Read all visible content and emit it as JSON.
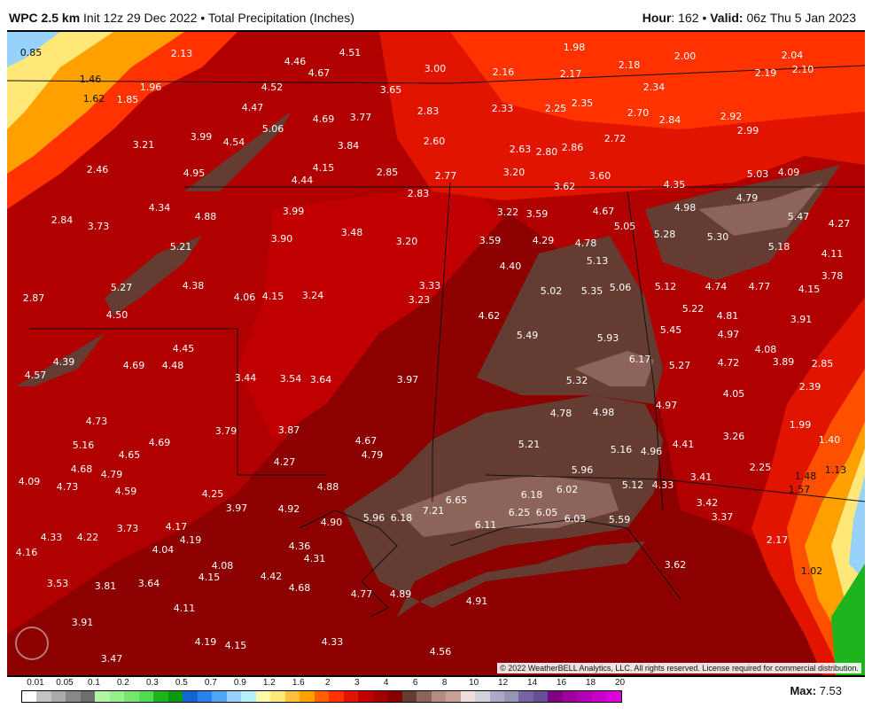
{
  "header": {
    "model": "WPC 2.5 km",
    "init": "Init 12z 29 Dec 2022",
    "separator": "•",
    "product": "Total Precipitation (Inches)",
    "hour_label": "Hour",
    "hour": ": 162",
    "valid_label": "Valid:",
    "valid": " 06z Thu 5 Jan 2023"
  },
  "map": {
    "copyright": "© 2022 WeatherBELL Analytics, LLC. All rights reserved. License required for commercial distribution.",
    "logo_text": "WEATHERBELL",
    "labels": [
      "0.85",
      "2.13",
      "4.46",
      "4.67",
      "4.51",
      "3.00",
      "2.16",
      "1.98",
      "2.17",
      "2.18",
      "2.00",
      "2.04",
      "2.19",
      "2.10",
      "1.46",
      "1.62",
      "1.85",
      "1.96",
      "4.52",
      "3.65",
      "2.34",
      "4.47",
      "4.69",
      "3.77",
      "2.83",
      "2.33",
      "2.25",
      "2.35",
      "2.70",
      "2.84",
      "2.92",
      "5.06",
      "2.99",
      "3.99",
      "4.54",
      "3.21",
      "3.84",
      "2.60",
      "2.63",
      "2.80",
      "2.86",
      "2.72",
      "2.46",
      "4.95",
      "4.15",
      "2.85",
      "2.77",
      "3.20",
      "3.60",
      "3.62",
      "4.44",
      "4.35",
      "5.03",
      "4.09",
      "2.83",
      "4.34",
      "4.88",
      "3.99",
      "3.22",
      "3.59",
      "4.67",
      "4.98",
      "4.79",
      "5.47",
      "4.27",
      "2.84",
      "3.73",
      "3.90",
      "3.48",
      "3.20",
      "3.59",
      "4.29",
      "4.78",
      "5.05",
      "5.28",
      "5.30",
      "5.18",
      "4.11",
      "5.21",
      "4.40",
      "5.13",
      "3.78",
      "5.27",
      "4.38",
      "4.06",
      "4.15",
      "3.24",
      "3.33",
      "3.23",
      "5.02",
      "5.35",
      "5.06",
      "5.12",
      "4.74",
      "4.77",
      "4.15",
      "2.87",
      "4.50",
      "4.62",
      "5.22",
      "4.81",
      "3.91",
      "5.49",
      "5.93",
      "5.45",
      "4.97",
      "4.45",
      "4.69",
      "4.48",
      "4.57",
      "4.39",
      "6.17",
      "4.72",
      "4.08",
      "3.89",
      "2.85",
      "3.44",
      "3.54",
      "3.64",
      "3.97",
      "5.32",
      "5.27",
      "4.05",
      "2.39",
      "4.97",
      "4.78",
      "4.98",
      "1.99",
      "4.73",
      "3.79",
      "3.87",
      "3.26",
      "1.40",
      "5.16",
      "4.69",
      "4.65",
      "4.67",
      "4.79",
      "5.21",
      "5.16",
      "4.96",
      "4.41",
      "4.27",
      "5.96",
      "2.25",
      "1.13",
      "4.68",
      "4.79",
      "4.09",
      "4.73",
      "4.59",
      "4.88",
      "5.12",
      "4.33",
      "3.41",
      "1.48",
      "1.57",
      "4.25",
      "6.18",
      "6.02",
      "3.97",
      "4.92",
      "6.65",
      "3.42",
      "4.90",
      "5.96",
      "6.18",
      "7.21",
      "6.25",
      "6.05",
      "6.03",
      "5.59",
      "3.37",
      "3.73",
      "4.17",
      "6.11",
      "4.33",
      "4.22",
      "4.19",
      "4.04",
      "4.36",
      "2.17",
      "4.16",
      "4.31",
      "4.08",
      "3.62",
      "4.15",
      "4.42",
      "1.02",
      "3.53",
      "3.81",
      "3.64",
      "4.68",
      "4.77",
      "4.89",
      "4.91",
      "4.11",
      "3.91",
      "4.19",
      "4.15",
      "4.33",
      "4.56",
      "3.47"
    ]
  },
  "legend": {
    "ticks": [
      "0.01",
      "0.05",
      "0.1",
      "0.2",
      "0.3",
      "0.5",
      "0.7",
      "0.9",
      "1.2",
      "1.6",
      "2",
      "3",
      "4",
      "6",
      "8",
      "10",
      "12",
      "14",
      "16",
      "18",
      "20"
    ],
    "colors": [
      "#ffffff",
      "#c4c4c4",
      "#aaaaaa",
      "#888888",
      "#6e6e6e",
      "#b4f5a5",
      "#96f08c",
      "#78e66e",
      "#50dc50",
      "#1eb41e",
      "#0a9a0a",
      "#1464d2",
      "#2882f0",
      "#50a5f5",
      "#96d2fa",
      "#b4f0fa",
      "#fffaaa",
      "#ffe878",
      "#ffc03c",
      "#ffa000",
      "#ff6000",
      "#ff3200",
      "#e11400",
      "#c00000",
      "#a50000",
      "#870000",
      "#643c32",
      "#8c645a",
      "#b48c82",
      "#c8a096",
      "#f0dcdc",
      "#d2d2dc",
      "#aaaac8",
      "#9696b4",
      "#7864a0",
      "#645096",
      "#820082",
      "#a000a0",
      "#b400b4",
      "#c800c8",
      "#dc00dc"
    ],
    "max_label": "Max:",
    "max_value": " 7.53"
  }
}
